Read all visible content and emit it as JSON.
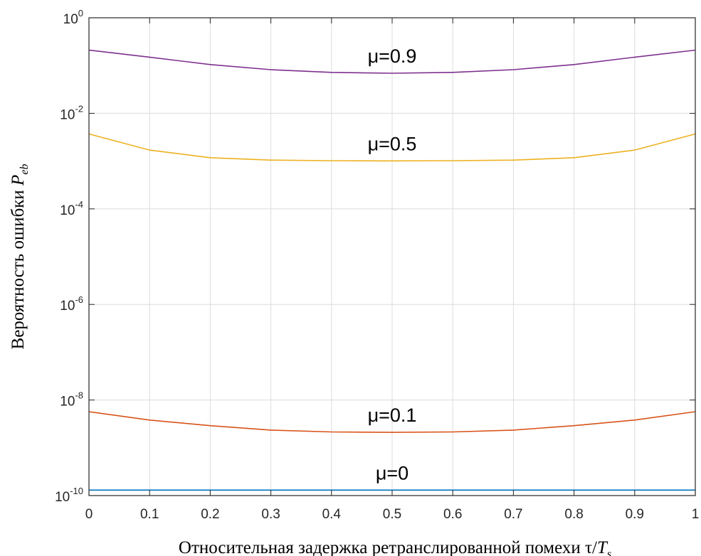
{
  "chart_data": {
    "type": "line",
    "title": "",
    "xlabel": {
      "text": "Относительная задержка ретранслированной помехи τ/",
      "var": "T",
      "sub": "s"
    },
    "ylabel": {
      "text": "Вероятность ошибки ",
      "var": "P",
      "sub": "eb"
    },
    "xlim": [
      0,
      1
    ],
    "ylim": [
      1e-10,
      1
    ],
    "yscale": "log",
    "grid": true,
    "x_ticks": [
      "0",
      "0.1",
      "0.2",
      "0.3",
      "0.4",
      "0.5",
      "0.6",
      "0.7",
      "0.8",
      "0.9",
      "1"
    ],
    "y_ticks": [
      {
        "base": "10",
        "exp": "0",
        "value": 1
      },
      {
        "base": "10",
        "exp": "-2",
        "value": 0.01
      },
      {
        "base": "10",
        "exp": "-4",
        "value": 0.0001
      },
      {
        "base": "10",
        "exp": "-6",
        "value": 1e-06
      },
      {
        "base": "10",
        "exp": "-8",
        "value": 1e-08
      },
      {
        "base": "10",
        "exp": "-10",
        "value": 1e-10
      }
    ],
    "x": [
      0,
      0.1,
      0.2,
      0.3,
      0.4,
      0.5,
      0.6,
      0.7,
      0.8,
      0.9,
      1
    ],
    "series": [
      {
        "name": "μ=0.9",
        "color": "#7e2f8e",
        "values": [
          0.21,
          0.15,
          0.105,
          0.082,
          0.072,
          0.069,
          0.072,
          0.082,
          0.105,
          0.15,
          0.21
        ]
      },
      {
        "name": "μ=0.5",
        "color": "#edb120",
        "values": [
          0.0037,
          0.0017,
          0.00118,
          0.00105,
          0.00102,
          0.00101,
          0.00102,
          0.00105,
          0.00118,
          0.0017,
          0.0037
        ]
      },
      {
        "name": "μ=0.1",
        "color": "#d95319",
        "values": [
          5.7e-09,
          3.8e-09,
          2.9e-09,
          2.35e-09,
          2.15e-09,
          2.1e-09,
          2.15e-09,
          2.35e-09,
          2.9e-09,
          3.8e-09,
          5.7e-09
        ]
      },
      {
        "name": "μ=0",
        "color": "#0072bd",
        "values": [
          1.3e-10,
          1.3e-10,
          1.3e-10,
          1.3e-10,
          1.3e-10,
          1.3e-10,
          1.3e-10,
          1.3e-10,
          1.3e-10,
          1.3e-10,
          1.3e-10
        ]
      }
    ],
    "annotations": [
      {
        "text": "μ=0.9",
        "series": 0,
        "x": 0.5
      },
      {
        "text": "μ=0.5",
        "series": 1,
        "x": 0.5
      },
      {
        "text": "μ=0.1",
        "series": 2,
        "x": 0.5
      },
      {
        "text": "μ=0",
        "series": 3,
        "x": 0.5
      }
    ]
  }
}
